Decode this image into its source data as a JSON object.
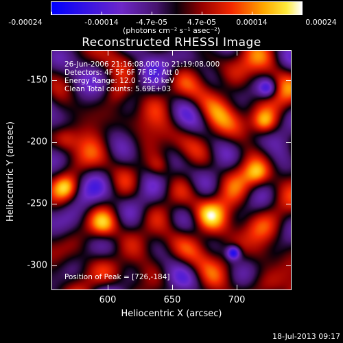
{
  "colorbar": {
    "tick_labels": [
      "-0.00024",
      "-0.00014",
      "-4.7e-05",
      "4.7e-05",
      "0.00014",
      "0.00024"
    ],
    "units": "(photons cm⁻² s⁻¹ asec⁻²)"
  },
  "title": "Reconstructed RHESSI Image",
  "info": {
    "time_range": "26-Jun-2006 21:16:08.000 to 21:19:08.000",
    "detectors": "Detectors: 4F 5F 6F 7F 8F, Att 0",
    "energy_range": "Energy Range: 12.0 - 25.0 keV",
    "clean": "Clean    Total counts: 5.69E+03",
    "peak": "Position of Peak = [726,-184]"
  },
  "axes": {
    "xlabel": "Heliocentric X (arcsec)",
    "ylabel": "Heliocentric Y (arcsec)",
    "x_ticks": [
      "600",
      "650",
      "700"
    ],
    "y_ticks": [
      "-150",
      "-200",
      "-250",
      "-300"
    ]
  },
  "timestamp": "18-Jul-2013 09:17"
}
